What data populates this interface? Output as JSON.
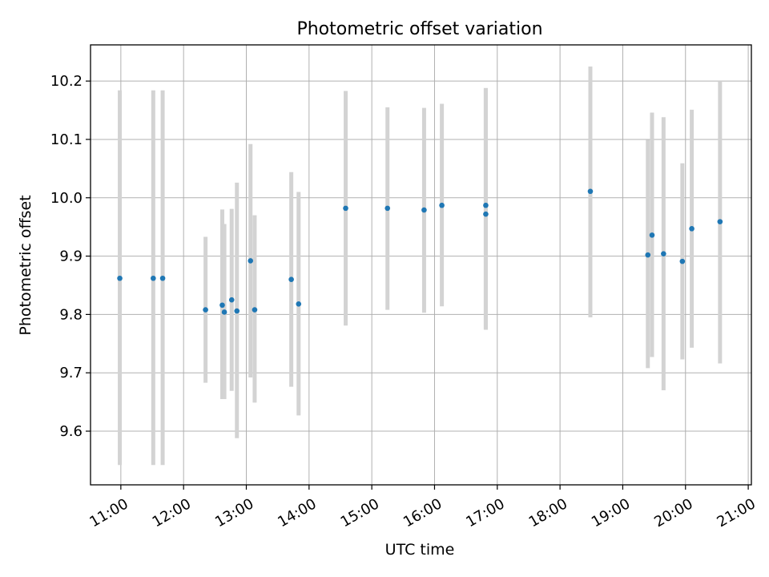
{
  "chart_data": {
    "type": "scatter",
    "title": "Photometric offset variation",
    "xlabel": "UTC time",
    "ylabel": "Photometric offset",
    "x_tick_labels": [
      "11:00",
      "12:00",
      "13:00",
      "14:00",
      "15:00",
      "16:00",
      "17:00",
      "18:00",
      "19:00",
      "20:00",
      "21:00"
    ],
    "x_ticks": [
      "11:00",
      "12:00",
      "13:00",
      "14:00",
      "15:00",
      "16:00",
      "17:00",
      "18:00",
      "19:00",
      "20:00",
      "21:00"
    ],
    "y_ticks": [
      9.6,
      9.7,
      9.8,
      9.9,
      10.0,
      10.1,
      10.2
    ],
    "y_tick_labels": [
      "9.6",
      "9.7",
      "9.8",
      "9.9",
      "10.0",
      "10.1",
      "10.2"
    ],
    "xlim": [
      "10:31",
      "21:03"
    ],
    "ylim": [
      9.508,
      10.262
    ],
    "grid": true,
    "marker_color": "#1f77b4",
    "errorbar_color": "#d3d3d3",
    "points": [
      {
        "x": "10:59",
        "y": 9.862,
        "ylow": 9.542,
        "yhigh": 10.184
      },
      {
        "x": "11:31",
        "y": 9.862,
        "ylow": 9.542,
        "yhigh": 10.184
      },
      {
        "x": "11:40",
        "y": 9.862,
        "ylow": 9.542,
        "yhigh": 10.184
      },
      {
        "x": "12:21",
        "y": 9.808,
        "ylow": 9.683,
        "yhigh": 9.933
      },
      {
        "x": "12:37",
        "y": 9.816,
        "ylow": 9.655,
        "yhigh": 9.98
      },
      {
        "x": "12:39",
        "y": 9.804,
        "ylow": 9.655,
        "yhigh": 9.955
      },
      {
        "x": "12:46",
        "y": 9.825,
        "ylow": 9.669,
        "yhigh": 9.981
      },
      {
        "x": "12:51",
        "y": 9.806,
        "ylow": 9.588,
        "yhigh": 10.026
      },
      {
        "x": "13:04",
        "y": 9.892,
        "ylow": 9.692,
        "yhigh": 10.092
      },
      {
        "x": "13:08",
        "y": 9.808,
        "ylow": 9.649,
        "yhigh": 9.97
      },
      {
        "x": "13:43",
        "y": 9.86,
        "ylow": 9.676,
        "yhigh": 10.044
      },
      {
        "x": "13:50",
        "y": 9.818,
        "ylow": 9.627,
        "yhigh": 10.01
      },
      {
        "x": "14:35",
        "y": 9.982,
        "ylow": 9.781,
        "yhigh": 10.183
      },
      {
        "x": "15:15",
        "y": 9.982,
        "ylow": 9.808,
        "yhigh": 10.155
      },
      {
        "x": "15:50",
        "y": 9.979,
        "ylow": 9.803,
        "yhigh": 10.154
      },
      {
        "x": "16:07",
        "y": 9.987,
        "ylow": 9.814,
        "yhigh": 10.161
      },
      {
        "x": "16:49",
        "y": 9.987,
        "ylow": 9.774,
        "yhigh": 10.188
      },
      {
        "x": "16:49",
        "y": 9.972,
        "ylow": 9.774,
        "yhigh": 10.188
      },
      {
        "x": "18:29",
        "y": 10.011,
        "ylow": 9.795,
        "yhigh": 10.225
      },
      {
        "x": "19:24",
        "y": 9.902,
        "ylow": 9.708,
        "yhigh": 10.099
      },
      {
        "x": "19:28",
        "y": 9.936,
        "ylow": 9.727,
        "yhigh": 10.146
      },
      {
        "x": "19:39",
        "y": 9.904,
        "ylow": 9.67,
        "yhigh": 10.138
      },
      {
        "x": "19:57",
        "y": 9.891,
        "ylow": 9.723,
        "yhigh": 10.059
      },
      {
        "x": "20:06",
        "y": 9.947,
        "ylow": 9.743,
        "yhigh": 10.151
      },
      {
        "x": "20:33",
        "y": 9.959,
        "ylow": 9.716,
        "yhigh": 10.2
      }
    ]
  }
}
